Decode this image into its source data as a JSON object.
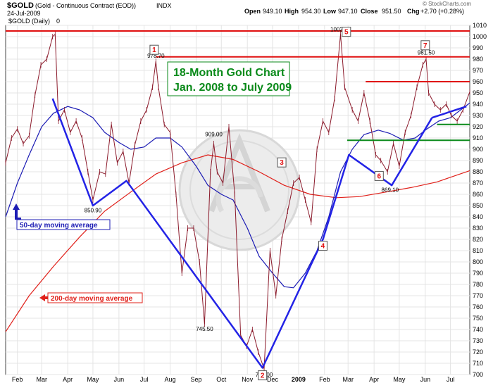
{
  "header": {
    "symbol": "$GOLD",
    "description": "(Gold - Continuous Contract (EOD))",
    "exchange": "INDX",
    "date": "24-Jul-2009",
    "open_label": "Open",
    "open": "949.10",
    "high_label": "High",
    "high": "954.30",
    "low_label": "Low",
    "low": "947.10",
    "close_label": "Close",
    "close": "951.50",
    "chg_label": "Chg",
    "chg": "+2.70 (+0.28%)",
    "watermark": "© StockCharts.com",
    "series_label": "$GOLD (Daily)",
    "series_last": "0"
  },
  "colors": {
    "price": "#8b1a2b",
    "ma50": "#1c1cb4",
    "ma200": "#e0201a",
    "trendline": "#2323e6",
    "resistance": "#e01010",
    "support": "#0a8a1a",
    "title": "#0a8a1a"
  },
  "chart_data": {
    "type": "line",
    "title": "18-Month Gold Chart\nJan. 2008 to July 2009",
    "title_lines": [
      "18-Month Gold Chart",
      "Jan. 2008 to July 2009"
    ],
    "xlabel": "",
    "ylabel": "",
    "ylim": [
      700,
      1010
    ],
    "yticks": [
      700,
      710,
      720,
      730,
      740,
      750,
      760,
      770,
      780,
      790,
      800,
      810,
      820,
      830,
      840,
      850,
      860,
      870,
      880,
      890,
      900,
      910,
      920,
      930,
      940,
      950,
      960,
      970,
      980,
      990,
      1000,
      1010
    ],
    "xtick_labels": [
      {
        "label": "Feb",
        "date": "2008-02-01",
        "bold": false
      },
      {
        "label": "Mar",
        "date": "2008-03-01",
        "bold": false
      },
      {
        "label": "Apr",
        "date": "2008-04-01",
        "bold": false
      },
      {
        "label": "May",
        "date": "2008-05-01",
        "bold": false
      },
      {
        "label": "Jun",
        "date": "2008-06-01",
        "bold": false
      },
      {
        "label": "Jul",
        "date": "2008-07-01",
        "bold": false
      },
      {
        "label": "Aug",
        "date": "2008-08-01",
        "bold": false
      },
      {
        "label": "Sep",
        "date": "2008-09-01",
        "bold": false
      },
      {
        "label": "Oct",
        "date": "2008-10-01",
        "bold": false
      },
      {
        "label": "Nov",
        "date": "2008-11-01",
        "bold": false
      },
      {
        "label": "Dec",
        "date": "2008-12-01",
        "bold": false
      },
      {
        "label": "2009",
        "date": "2009-01-01",
        "bold": true
      },
      {
        "label": "Feb",
        "date": "2009-02-01",
        "bold": false
      },
      {
        "label": "Mar",
        "date": "2009-03-01",
        "bold": false
      },
      {
        "label": "Apr",
        "date": "2009-04-01",
        "bold": false
      },
      {
        "label": "May",
        "date": "2009-05-01",
        "bold": false
      },
      {
        "label": "Jun",
        "date": "2009-06-01",
        "bold": false
      },
      {
        "label": "Jul",
        "date": "2009-07-01",
        "bold": false
      }
    ],
    "x_range": [
      "2008-01-18",
      "2009-07-24"
    ],
    "grid": true,
    "series": [
      {
        "name": "$GOLD (Daily)",
        "style": "hlc-bars",
        "color": "#8b1a2b",
        "points": [
          [
            "2008-01-18",
            888
          ],
          [
            "2008-01-25",
            910
          ],
          [
            "2008-02-01",
            918
          ],
          [
            "2008-02-08",
            905
          ],
          [
            "2008-02-15",
            912
          ],
          [
            "2008-02-22",
            948
          ],
          [
            "2008-02-29",
            975
          ],
          [
            "2008-03-07",
            980
          ],
          [
            "2008-03-14",
            1000
          ],
          [
            "2008-03-17",
            1002
          ],
          [
            "2008-03-21",
            925
          ],
          [
            "2008-03-28",
            935
          ],
          [
            "2008-04-04",
            915
          ],
          [
            "2008-04-11",
            925
          ],
          [
            "2008-04-18",
            910
          ],
          [
            "2008-04-25",
            880
          ],
          [
            "2008-05-01",
            855
          ],
          [
            "2008-05-09",
            880
          ],
          [
            "2008-05-16",
            878
          ],
          [
            "2008-05-23",
            922
          ],
          [
            "2008-05-30",
            888
          ],
          [
            "2008-06-06",
            898
          ],
          [
            "2008-06-13",
            870
          ],
          [
            "2008-06-20",
            904
          ],
          [
            "2008-06-27",
            925
          ],
          [
            "2008-07-04",
            935
          ],
          [
            "2008-07-11",
            955
          ],
          [
            "2008-07-15",
            978
          ],
          [
            "2008-07-18",
            955
          ],
          [
            "2008-07-25",
            922
          ],
          [
            "2008-08-01",
            915
          ],
          [
            "2008-08-08",
            860
          ],
          [
            "2008-08-15",
            790
          ],
          [
            "2008-08-22",
            830
          ],
          [
            "2008-08-29",
            830
          ],
          [
            "2008-09-05",
            800
          ],
          [
            "2008-09-11",
            745
          ],
          [
            "2008-09-18",
            880
          ],
          [
            "2008-09-22",
            905
          ],
          [
            "2008-09-26",
            880
          ],
          [
            "2008-10-03",
            870
          ],
          [
            "2008-10-10",
            920
          ],
          [
            "2008-10-17",
            860
          ],
          [
            "2008-10-24",
            735
          ],
          [
            "2008-10-31",
            725
          ],
          [
            "2008-11-07",
            740
          ],
          [
            "2008-11-14",
            720
          ],
          [
            "2008-11-21",
            705
          ],
          [
            "2008-11-28",
            810
          ],
          [
            "2008-12-05",
            770
          ],
          [
            "2008-12-12",
            820
          ],
          [
            "2008-12-19",
            845
          ],
          [
            "2008-12-26",
            870
          ],
          [
            "2009-01-02",
            875
          ],
          [
            "2009-01-09",
            855
          ],
          [
            "2009-01-16",
            835
          ],
          [
            "2009-01-23",
            900
          ],
          [
            "2009-01-30",
            925
          ],
          [
            "2009-02-06",
            915
          ],
          [
            "2009-02-13",
            945
          ],
          [
            "2009-02-20",
            1002
          ],
          [
            "2009-02-25",
            955
          ],
          [
            "2009-03-06",
            935
          ],
          [
            "2009-03-13",
            925
          ],
          [
            "2009-03-20",
            950
          ],
          [
            "2009-03-27",
            925
          ],
          [
            "2009-04-03",
            895
          ],
          [
            "2009-04-09",
            890
          ],
          [
            "2009-04-17",
            880
          ],
          [
            "2009-04-24",
            905
          ],
          [
            "2009-05-01",
            885
          ],
          [
            "2009-05-08",
            915
          ],
          [
            "2009-05-15",
            930
          ],
          [
            "2009-05-22",
            955
          ],
          [
            "2009-05-29",
            975
          ],
          [
            "2009-06-02",
            980
          ],
          [
            "2009-06-05",
            950
          ],
          [
            "2009-06-12",
            940
          ],
          [
            "2009-06-19",
            935
          ],
          [
            "2009-06-26",
            940
          ],
          [
            "2009-07-02",
            930
          ],
          [
            "2009-07-09",
            925
          ],
          [
            "2009-07-16",
            935
          ],
          [
            "2009-07-24",
            951
          ]
        ]
      },
      {
        "name": "50-day moving average",
        "style": "line",
        "color": "#1c1cb4",
        "points": [
          [
            "2008-01-18",
            840
          ],
          [
            "2008-02-01",
            870
          ],
          [
            "2008-02-15",
            895
          ],
          [
            "2008-03-01",
            920
          ],
          [
            "2008-03-15",
            932
          ],
          [
            "2008-04-01",
            938
          ],
          [
            "2008-04-15",
            935
          ],
          [
            "2008-05-01",
            928
          ],
          [
            "2008-05-15",
            915
          ],
          [
            "2008-06-01",
            906
          ],
          [
            "2008-06-15",
            900
          ],
          [
            "2008-07-01",
            902
          ],
          [
            "2008-07-15",
            910
          ],
          [
            "2008-08-01",
            910
          ],
          [
            "2008-08-15",
            902
          ],
          [
            "2008-09-01",
            885
          ],
          [
            "2008-09-15",
            868
          ],
          [
            "2008-10-01",
            860
          ],
          [
            "2008-10-15",
            855
          ],
          [
            "2008-11-01",
            830
          ],
          [
            "2008-11-15",
            805
          ],
          [
            "2008-12-01",
            790
          ],
          [
            "2008-12-15",
            778
          ],
          [
            "2008-12-26",
            777
          ],
          [
            "2009-01-09",
            790
          ],
          [
            "2009-01-23",
            810
          ],
          [
            "2009-02-06",
            840
          ],
          [
            "2009-02-20",
            880
          ],
          [
            "2009-03-06",
            900
          ],
          [
            "2009-03-20",
            913
          ],
          [
            "2009-04-06",
            917
          ],
          [
            "2009-04-20",
            914
          ],
          [
            "2009-05-06",
            908
          ],
          [
            "2009-05-20",
            910
          ],
          [
            "2009-06-03",
            918
          ],
          [
            "2009-06-17",
            925
          ],
          [
            "2009-07-01",
            928
          ],
          [
            "2009-07-15",
            936
          ],
          [
            "2009-07-24",
            941
          ]
        ]
      },
      {
        "name": "200-day moving average",
        "style": "line",
        "color": "#e0201a",
        "points": [
          [
            "2008-01-18",
            738
          ],
          [
            "2008-02-15",
            770
          ],
          [
            "2008-03-15",
            796
          ],
          [
            "2008-04-15",
            822
          ],
          [
            "2008-05-15",
            845
          ],
          [
            "2008-06-15",
            862
          ],
          [
            "2008-07-15",
            878
          ],
          [
            "2008-08-15",
            888
          ],
          [
            "2008-09-15",
            895
          ],
          [
            "2008-10-15",
            891
          ],
          [
            "2008-11-15",
            880
          ],
          [
            "2008-12-15",
            868
          ],
          [
            "2009-01-15",
            860
          ],
          [
            "2009-02-15",
            857
          ],
          [
            "2009-03-15",
            858
          ],
          [
            "2009-04-15",
            862
          ],
          [
            "2009-05-15",
            866
          ],
          [
            "2009-06-15",
            871
          ],
          [
            "2009-07-24",
            881
          ]
        ]
      }
    ],
    "trendlines": [
      {
        "color": "#2323e6",
        "points": [
          [
            "2008-03-14",
            945
          ],
          [
            "2008-05-01",
            850
          ],
          [
            "2008-06-10",
            872
          ],
          [
            "2008-11-19",
            706
          ],
          [
            "2009-01-30",
            820
          ],
          [
            "2009-03-02",
            895
          ],
          [
            "2009-04-22",
            868
          ],
          [
            "2009-06-09",
            928
          ]
        ]
      },
      {
        "color": "#2323e6",
        "points": [
          [
            "2009-06-09",
            928
          ],
          [
            "2009-07-20",
            938
          ]
        ]
      }
    ],
    "horizontal_lines": [
      {
        "y": 1005,
        "color": "#e01010",
        "from": "2008-01-18",
        "to": "2009-07-24"
      },
      {
        "y": 982,
        "color": "#e01010",
        "from": "2008-07-15",
        "to": "2009-07-24"
      },
      {
        "y": 960,
        "color": "#e01010",
        "from": "2009-03-22",
        "to": "2009-07-24"
      },
      {
        "y": 922,
        "color": "#0a8a1a",
        "from": "2009-06-15",
        "to": "2009-07-24"
      },
      {
        "y": 908,
        "color": "#0a8a1a",
        "from": "2009-02-28",
        "to": "2009-07-24"
      }
    ],
    "data_labels": [
      {
        "text": "978.70",
        "date": "2008-07-15",
        "y": 978.7,
        "pos": "above"
      },
      {
        "text": "850.90",
        "date": "2008-05-01",
        "y": 850.9,
        "pos": "below"
      },
      {
        "text": "909.00",
        "date": "2008-09-22",
        "y": 909,
        "pos": "above"
      },
      {
        "text": "745.50",
        "date": "2008-09-11",
        "y": 745.5,
        "pos": "below"
      },
      {
        "text": "705.00",
        "date": "2008-11-21",
        "y": 705,
        "pos": "below"
      },
      {
        "text": "1002.20",
        "date": "2009-02-20",
        "y": 1002.2,
        "pos": "above"
      },
      {
        "text": "869.10",
        "date": "2009-04-20",
        "y": 869.1,
        "pos": "below"
      },
      {
        "text": "981.50",
        "date": "2009-06-02",
        "y": 981.5,
        "pos": "above"
      }
    ],
    "markers": [
      {
        "text": "1",
        "date": "2008-07-13",
        "y": 988
      },
      {
        "text": "2",
        "date": "2008-11-19",
        "y": 699
      },
      {
        "text": "3",
        "date": "2008-12-12",
        "y": 888
      },
      {
        "text": "4",
        "date": "2009-01-30",
        "y": 814
      },
      {
        "text": "5",
        "date": "2009-02-27",
        "y": 1004
      },
      {
        "text": "6",
        "date": "2009-04-07",
        "y": 876
      },
      {
        "text": "7",
        "date": "2009-06-01",
        "y": 992
      }
    ],
    "legend": [
      {
        "text": "50-day moving average",
        "color": "#1c1cb4",
        "arrow": "up",
        "placement": "left"
      },
      {
        "text": "200-day moving average",
        "color": "#e0201a",
        "arrow": "left",
        "placement": "left"
      }
    ]
  }
}
